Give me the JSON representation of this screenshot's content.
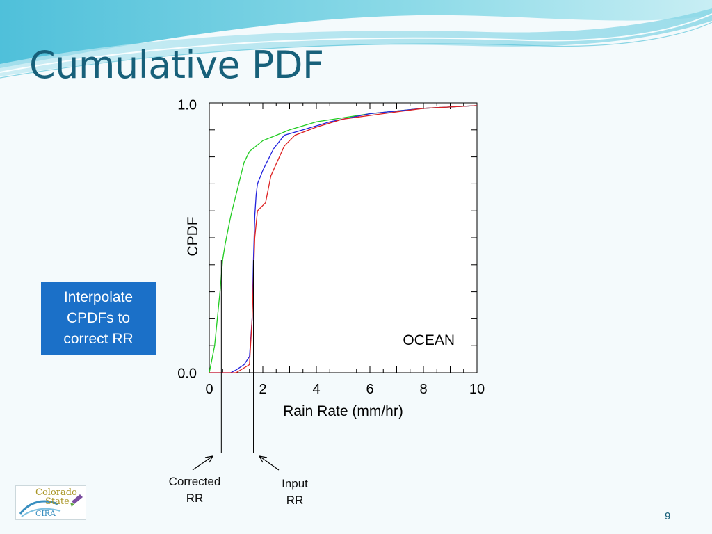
{
  "slide": {
    "title": "Cumulative PDF",
    "page_number": "9",
    "callout_lines": [
      "Interpolate",
      "CPDFs to",
      "correct RR"
    ],
    "annotation_corrected": [
      "Corrected",
      "RR"
    ],
    "annotation_input": [
      "Input",
      "RR"
    ],
    "logo": {
      "line1": "Colorado",
      "line2": "State",
      "line3": "CIRA"
    },
    "colors": {
      "title": "#17607a",
      "callout_bg": "#1b70c8"
    }
  },
  "chart_data": {
    "type": "line",
    "xlabel": "Rain Rate (mm/hr)",
    "ylabel": "CPDF",
    "xlim": [
      0,
      10
    ],
    "ylim": [
      0,
      1
    ],
    "x_ticks": [
      0,
      2,
      4,
      6,
      8,
      10
    ],
    "x_tick_labels": [
      "0",
      "2",
      "4",
      "6",
      "8",
      "10"
    ],
    "y_tick_labels": [
      "0.0",
      "1.0"
    ],
    "annotation": "OCEAN",
    "grid": false,
    "series": [
      {
        "color": "#22cc22",
        "x": [
          0.0,
          0.2,
          0.4,
          0.5,
          0.6,
          0.8,
          1.0,
          1.3,
          1.5,
          2.0,
          2.5,
          3.0,
          4.0,
          6.0,
          8.0,
          10.0
        ],
        "y": [
          0.0,
          0.1,
          0.3,
          0.42,
          0.48,
          0.58,
          0.66,
          0.78,
          0.82,
          0.86,
          0.88,
          0.9,
          0.93,
          0.96,
          0.98,
          0.99
        ]
      },
      {
        "color": "#2222dd",
        "x": [
          0.0,
          0.8,
          1.0,
          1.3,
          1.5,
          1.6,
          1.65,
          1.7,
          1.75,
          1.8,
          2.0,
          2.4,
          2.8,
          3.5,
          4.5,
          6.0,
          8.0,
          10.0
        ],
        "y": [
          0.0,
          0.0,
          0.01,
          0.03,
          0.06,
          0.2,
          0.42,
          0.58,
          0.66,
          0.7,
          0.75,
          0.83,
          0.88,
          0.9,
          0.93,
          0.96,
          0.98,
          0.99
        ]
      },
      {
        "color": "#dd2222",
        "x": [
          0.0,
          1.0,
          1.5,
          1.6,
          1.7,
          1.8,
          2.1,
          2.3,
          2.8,
          3.2,
          4.0,
          5.0,
          6.5,
          8.0,
          10.0
        ],
        "y": [
          0.0,
          0.0,
          0.03,
          0.2,
          0.5,
          0.6,
          0.63,
          0.73,
          0.84,
          0.88,
          0.91,
          0.94,
          0.96,
          0.98,
          0.99
        ]
      }
    ],
    "interpolation_level": 0.37,
    "corrected_rr": 0.45,
    "input_rr": 1.65
  }
}
